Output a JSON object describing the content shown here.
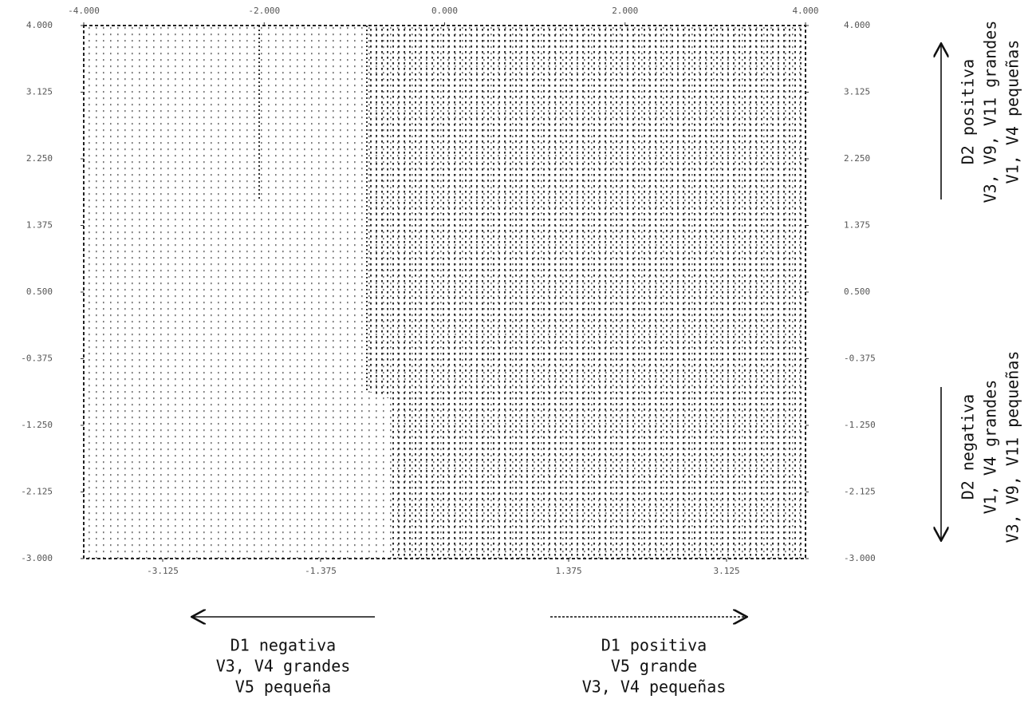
{
  "chart_data": {
    "type": "territorial",
    "xlim": [
      -4,
      4
    ],
    "x2ticks": [
      {
        "value": -4,
        "label": "-4.000"
      },
      {
        "value": -2,
        "label": "-2.000"
      },
      {
        "value": 0,
        "label": "0.000"
      },
      {
        "value": 2,
        "label": "2.000"
      },
      {
        "value": 4,
        "label": "4.000"
      }
    ],
    "xticks": [
      {
        "value": -3.125,
        "label": "-3.125"
      },
      {
        "value": -1.375,
        "label": "-1.375"
      },
      {
        "value": 1.375,
        "label": "1.375"
      },
      {
        "value": 3.125,
        "label": "3.125"
      }
    ],
    "ylim": [
      -3,
      4
    ],
    "yticks": [
      {
        "value": 4,
        "label": "4.000"
      },
      {
        "value": 3.125,
        "label": "3.125"
      },
      {
        "value": 2.25,
        "label": "2.250"
      },
      {
        "value": 1.375,
        "label": "1.375"
      },
      {
        "value": 0.5,
        "label": "0.500"
      },
      {
        "value": -0.375,
        "label": "-0.375"
      },
      {
        "value": -1.25,
        "label": "-1.250"
      },
      {
        "value": -2.125,
        "label": "-2.125"
      },
      {
        "value": -3,
        "label": "-3.000"
      }
    ],
    "y2lim": [
      -3,
      4
    ],
    "y2ticks": [
      {
        "value": 4,
        "label": "4.000"
      },
      {
        "value": 3.125,
        "label": "3.125"
      },
      {
        "value": 2.25,
        "label": "2.250"
      },
      {
        "value": 1.375,
        "label": "1.375"
      },
      {
        "value": 0.5,
        "label": "0.500"
      },
      {
        "value": -0.375,
        "label": "-0.375"
      },
      {
        "value": -1.25,
        "label": "-1.250"
      },
      {
        "value": -2.125,
        "label": "-2.125"
      },
      {
        "value": -3,
        "label": "-3.000"
      }
    ],
    "annotations": [
      {
        "lines": [
          "D2 positiva",
          "V3, V9, V11 grandes",
          "V1, V4 pequeñas"
        ]
      },
      {
        "lines": [
          "D2 negativa",
          "V1, V4 grandes",
          "V3, V9, V11 pequeñas"
        ]
      },
      {
        "lines": [
          "D1 negativa",
          "V3, V4 grandes",
          "V5 pequeña"
        ]
      },
      {
        "lines": [
          "D1 positiva",
          "V5 grande",
          "V3, V4 pequeñas"
        ]
      }
    ]
  }
}
